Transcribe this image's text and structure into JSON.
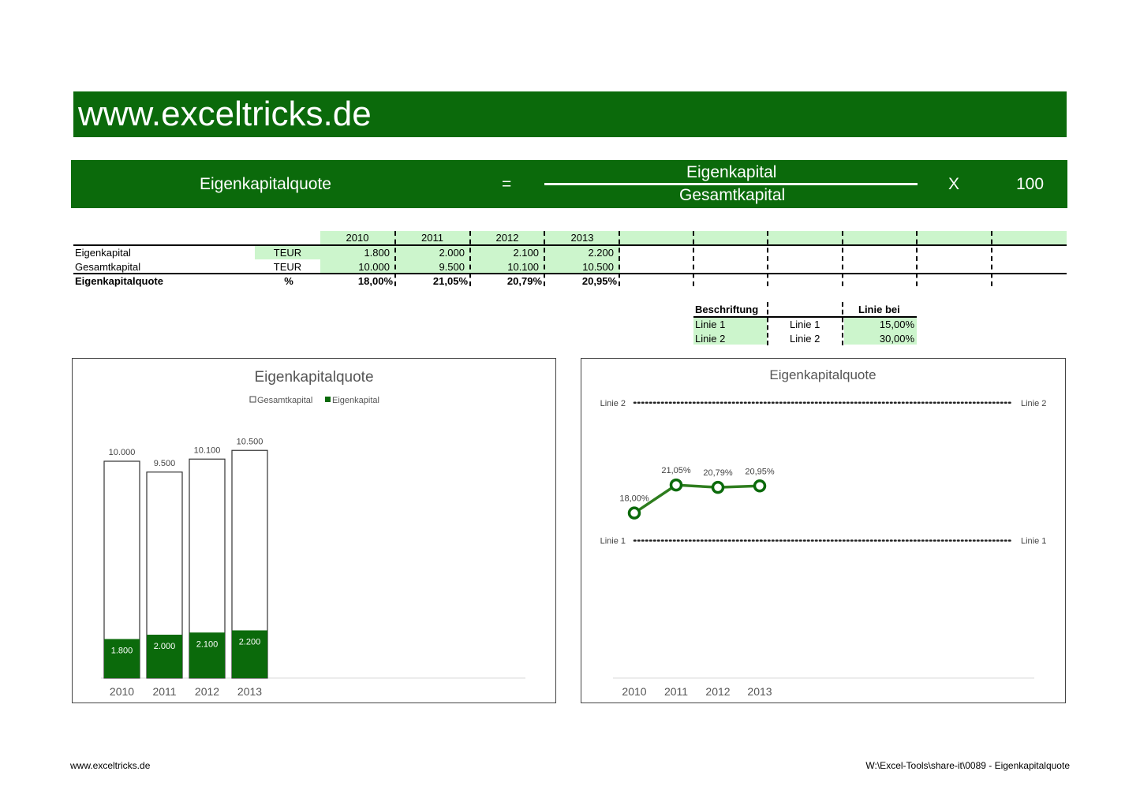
{
  "site_title": "www.exceltricks.de",
  "formula": {
    "label": "Eigenkapitalquote",
    "equals": "=",
    "numerator": "Eigenkapital",
    "denominator": "Gesamtkapital",
    "times": "X",
    "factor": "100"
  },
  "table": {
    "years": [
      "2010",
      "2011",
      "2012",
      "2013"
    ],
    "rows": [
      {
        "label": "Eigenkapital",
        "unit": "TEUR",
        "values": [
          "1.800",
          "2.000",
          "2.100",
          "2.200"
        ]
      },
      {
        "label": "Gesamtkapital",
        "unit": "TEUR",
        "values": [
          "10.000",
          "9.500",
          "10.100",
          "10.500"
        ]
      },
      {
        "label": "Eigenkapitalquote",
        "unit": "%",
        "values": [
          "18,00%",
          "21,05%",
          "20,79%",
          "20,95%"
        ]
      }
    ]
  },
  "lines_table": {
    "header_label": "Beschriftung",
    "header_value": "Linie bei",
    "rows": [
      {
        "label": "Linie 1",
        "name": "Linie 1",
        "value": "15,00%"
      },
      {
        "label": "Linie 2",
        "name": "Linie 2",
        "value": "30,00%"
      }
    ]
  },
  "footer": {
    "left": "www.exceltricks.de",
    "right": "W:\\Excel-Tools\\share-it\\0089 - Eigenkapitalquote"
  },
  "colors": {
    "brand_green": "#0b6a0b",
    "light_green": "#ccf5cc",
    "line_green": "#2e7d1e"
  },
  "chart_data": [
    {
      "type": "bar",
      "title": "Eigenkapitalquote",
      "categories": [
        "2010",
        "2011",
        "2012",
        "2013"
      ],
      "series": [
        {
          "name": "Gesamtkapital",
          "values": [
            10000,
            9500,
            10100,
            10500
          ],
          "labels": [
            "10.000",
            "9.500",
            "10.100",
            "10.500"
          ]
        },
        {
          "name": "Eigenkapital",
          "values": [
            1800,
            2000,
            2100,
            2200
          ],
          "labels": [
            "1.800",
            "2.000",
            "2.100",
            "2.200"
          ]
        }
      ],
      "legend": "top",
      "ylim": [
        0,
        12000
      ],
      "grid": false
    },
    {
      "type": "line",
      "title": "Eigenkapitalquote",
      "categories": [
        "2010",
        "2011",
        "2012",
        "2013"
      ],
      "values": [
        18.0,
        21.05,
        20.79,
        20.95
      ],
      "labels": [
        "18,00%",
        "21,05%",
        "20,79%",
        "20,95%"
      ],
      "reference_lines": [
        {
          "name": "Linie 2",
          "value": 30.0
        },
        {
          "name": "Linie 1",
          "value": 15.0
        }
      ],
      "ylim": [
        0,
        35
      ],
      "grid": false
    }
  ]
}
